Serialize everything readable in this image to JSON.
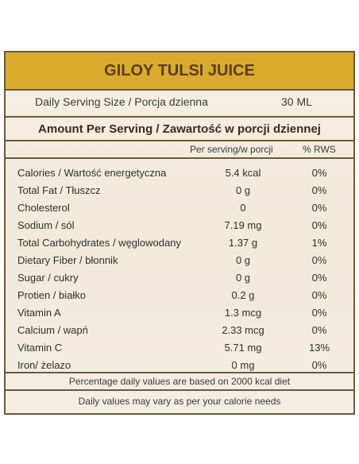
{
  "title": "GILOY TULSI JUICE",
  "serving": {
    "label": "Daily Serving Size / Porcja dzienna",
    "value": "30 ML"
  },
  "amount_header": "Amount Per Serving / Zawartość w porcji dziennej",
  "columns": {
    "per_serving": "Per serving/w porcji",
    "rws": "% RWS"
  },
  "rows": [
    {
      "name": "Calories / Wartość energetyczna",
      "amount": "5.4 kcal",
      "percent": "0%"
    },
    {
      "name": "Total Fat / Tłuszcz",
      "amount": "0 g",
      "percent": "0%"
    },
    {
      "name": "Cholesterol",
      "amount": "0",
      "percent": "0%"
    },
    {
      "name": "Sodium / sól",
      "amount": "7.19 mg",
      "percent": "0%"
    },
    {
      "name": "Total Carbohydrates / węglowodany",
      "amount": "1.37 g",
      "percent": "1%"
    },
    {
      "name": "Dietary Fiber / błonnik",
      "amount": "0 g",
      "percent": "0%"
    },
    {
      "name": "Sugar / cukry",
      "amount": "0 g",
      "percent": "0%"
    },
    {
      "name": "Protien / białko",
      "amount": "0.2 g",
      "percent": "0%"
    },
    {
      "name": "Vitamin A",
      "amount": "1.3 mcg",
      "percent": "0%"
    },
    {
      "name": "Calcium / wapń",
      "amount": "2.33 mcg",
      "percent": "0%"
    },
    {
      "name": "Vitamin C",
      "amount": "5.71 mg",
      "percent": "13%"
    },
    {
      "name": "Iron/ żelazo",
      "amount": "0 mg",
      "percent": "0%"
    }
  ],
  "footnotes": [
    "Percentage daily values are based on 2000 kcal diet",
    "Daily values may vary as per your calorie needs"
  ],
  "colors": {
    "title_bar": "#d9ab2c",
    "title_text": "#5a3d28",
    "border": "#6b5a3a",
    "background": "#f4eee2"
  }
}
